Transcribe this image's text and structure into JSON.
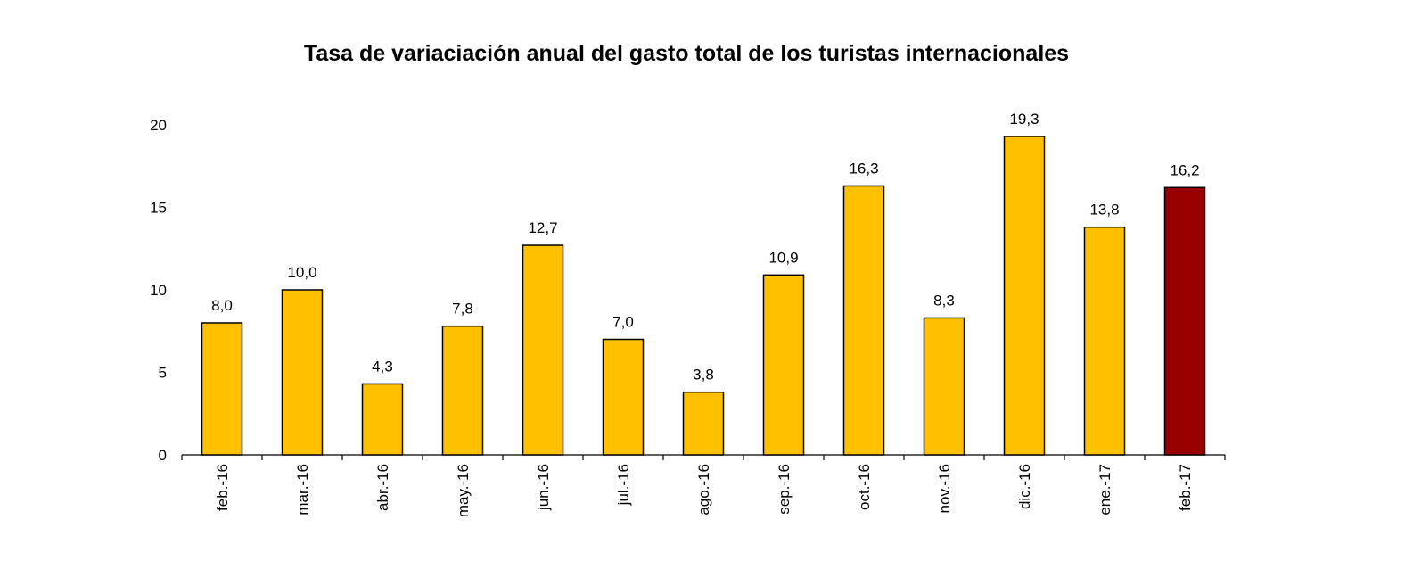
{
  "chart_data": {
    "type": "bar",
    "title": "Tasa de variaciación anual del gasto total de los turistas internacionales",
    "xlabel": "",
    "ylabel": "",
    "ylim": [
      0,
      20
    ],
    "yticks": [
      0,
      5,
      10,
      15,
      20
    ],
    "grid": false,
    "legend": "none",
    "categories": [
      "feb.-16",
      "mar.-16",
      "abr.-16",
      "may.-16",
      "jun.-16",
      "jul.-16",
      "ago.-16",
      "sep.-16",
      "oct.-16",
      "nov.-16",
      "dic.-16",
      "ene.-17",
      "feb.-17"
    ],
    "values": [
      8.0,
      10.0,
      4.3,
      7.8,
      12.7,
      7.0,
      3.8,
      10.9,
      16.3,
      8.3,
      19.3,
      13.8,
      16.2
    ],
    "value_labels": [
      "8,0",
      "10,0",
      "4,3",
      "7,8",
      "12,7",
      "7,0",
      "3,8",
      "10,9",
      "16,3",
      "8,3",
      "19,3",
      "13,8",
      "16,2"
    ],
    "colors": {
      "bar": "#FFC000",
      "highlight": "#990000",
      "highlight_index": 12,
      "outline": "#000000"
    }
  }
}
